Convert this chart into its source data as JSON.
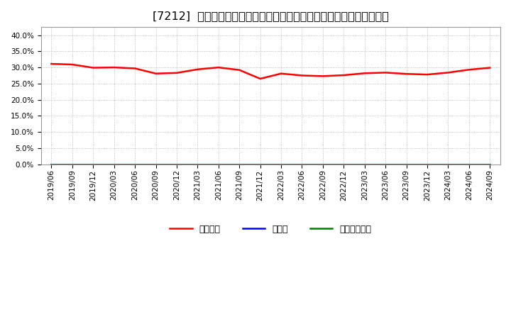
{
  "title": "[7212]  自己資本、のれん、繰延税金資産の総資産に対する比率の推移",
  "x_labels": [
    "2019/06",
    "2019/09",
    "2019/12",
    "2020/03",
    "2020/06",
    "2020/09",
    "2020/12",
    "2021/03",
    "2021/06",
    "2021/09",
    "2021/12",
    "2022/03",
    "2022/06",
    "2022/09",
    "2022/12",
    "2023/03",
    "2023/06",
    "2023/09",
    "2023/12",
    "2024/03",
    "2024/06",
    "2024/09"
  ],
  "jiko_shihon": [
    0.311,
    0.309,
    0.299,
    0.3,
    0.297,
    0.281,
    0.283,
    0.294,
    0.3,
    0.292,
    0.265,
    0.281,
    0.275,
    0.273,
    0.276,
    0.282,
    0.284,
    0.28,
    0.278,
    0.284,
    0.293,
    0.299
  ],
  "noren": [
    0,
    0,
    0,
    0,
    0,
    0,
    0,
    0,
    0,
    0,
    0,
    0,
    0,
    0,
    0,
    0,
    0,
    0,
    0,
    0,
    0,
    0
  ],
  "kurinobe": [
    0,
    0,
    0,
    0,
    0,
    0,
    0,
    0,
    0,
    0,
    0,
    0,
    0,
    0,
    0,
    0,
    0,
    0,
    0,
    0,
    0,
    0
  ],
  "jiko_color": "#ff0000",
  "noren_color": "#0000ff",
  "kurinobe_color": "#008000",
  "background_color": "#ffffff",
  "plot_bg_color": "#ffffff",
  "grid_color": "#aaaaaa",
  "ylim": [
    0.0,
    0.425
  ],
  "yticks": [
    0.0,
    0.05,
    0.1,
    0.15,
    0.2,
    0.25,
    0.3,
    0.35,
    0.4
  ],
  "legend_labels": [
    "自己資本",
    "のれん",
    "繰延税金資産"
  ],
  "title_fontsize": 11.5,
  "label_fontsize": 9,
  "tick_fontsize": 7.5
}
